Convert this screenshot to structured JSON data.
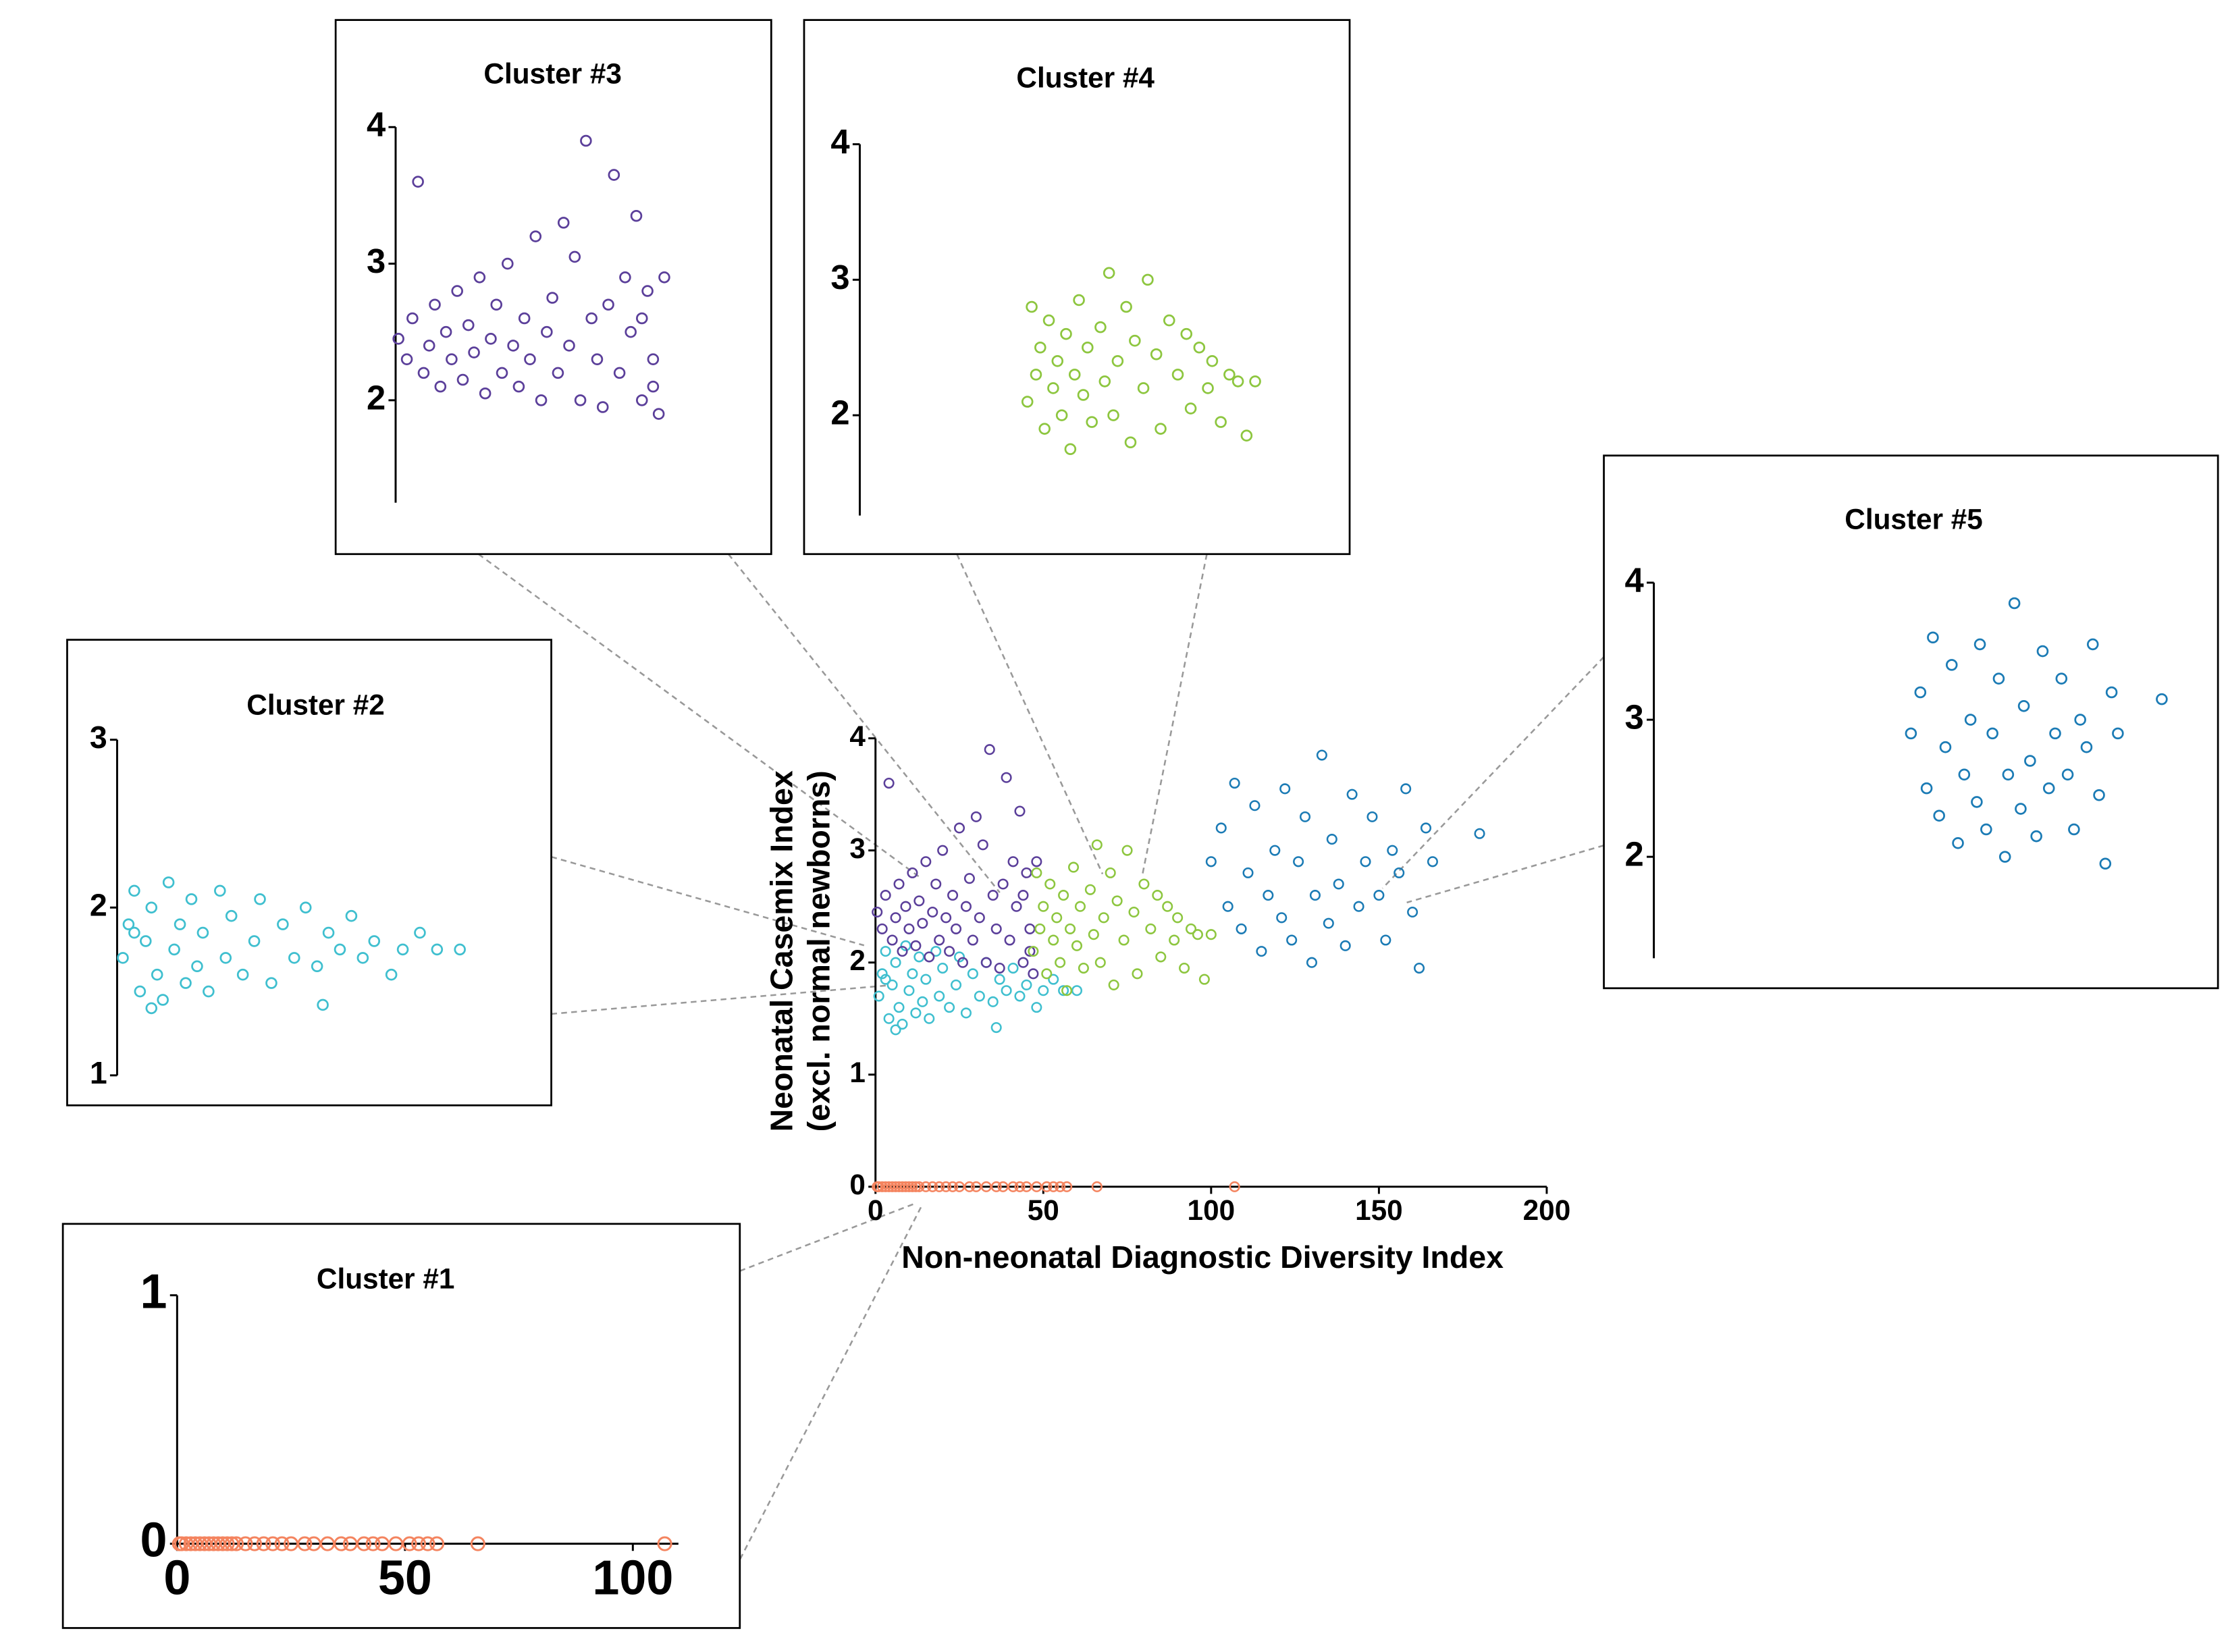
{
  "chart_data": [
    {
      "type": "scatter",
      "xlabel": "Non-neonatal Diagnostic Diversity Index",
      "ylabel": [
        "Neonatal Casemix  Index",
        "(excl. normal newborns)"
      ],
      "xlim": [
        0,
        200
      ],
      "ylim": [
        0,
        4
      ],
      "xticks": [
        0,
        50,
        100,
        150,
        200
      ],
      "yticks": [
        0,
        1,
        2,
        3,
        4
      ],
      "series": [
        {
          "color": "#f4845f",
          "x": [
            0.5,
            1,
            2,
            3,
            4,
            5,
            6,
            7,
            8,
            9,
            10,
            11,
            12,
            13,
            15,
            17,
            19,
            21,
            23,
            25,
            28,
            30,
            33,
            36,
            38,
            41,
            43,
            45,
            48,
            51,
            53,
            55,
            57,
            66,
            107
          ],
          "values": [
            0,
            0,
            0,
            0,
            0,
            0,
            0,
            0,
            0,
            0,
            0,
            0,
            0,
            0,
            0,
            0,
            0,
            0,
            0,
            0,
            0,
            0,
            0,
            0,
            0,
            0,
            0,
            0,
            0,
            0,
            0,
            0,
            0,
            0,
            0
          ]
        },
        {
          "color": "#3fbfcf",
          "x": [
            1,
            2,
            3,
            4,
            5,
            6,
            7,
            8,
            9,
            10,
            11,
            12,
            13,
            14,
            15,
            16,
            18,
            19,
            20,
            22,
            24,
            25,
            27,
            29,
            31,
            33,
            35,
            37,
            39,
            41,
            43,
            45,
            48,
            50,
            53,
            56,
            60,
            36,
            6,
            3
          ],
          "values": [
            1.7,
            1.9,
            2.1,
            1.5,
            1.8,
            2.0,
            1.6,
            1.45,
            2.15,
            1.75,
            1.9,
            1.55,
            2.05,
            1.65,
            1.85,
            1.5,
            2.1,
            1.7,
            1.95,
            1.6,
            1.8,
            2.05,
            1.55,
            1.9,
            1.7,
            2.0,
            1.65,
            1.85,
            1.75,
            1.95,
            1.7,
            1.8,
            1.6,
            1.75,
            1.85,
            1.75,
            1.75,
            1.42,
            1.4,
            1.85
          ]
        },
        {
          "color": "#5b3f9a",
          "x": [
            0.5,
            2,
            3,
            4,
            5,
            6,
            7,
            8,
            9,
            10,
            11,
            12,
            13,
            14,
            15,
            16,
            17,
            18,
            19,
            20,
            21,
            22,
            23,
            24,
            25,
            26,
            27,
            28,
            29,
            30,
            31,
            32,
            33,
            34,
            35,
            36,
            37,
            38,
            39,
            40,
            41,
            42,
            43,
            44,
            45,
            46,
            47,
            48,
            46,
            44
          ],
          "values": [
            2.45,
            2.3,
            2.6,
            3.6,
            2.2,
            2.4,
            2.7,
            2.1,
            2.5,
            2.3,
            2.8,
            2.15,
            2.55,
            2.35,
            2.9,
            2.05,
            2.45,
            2.7,
            2.2,
            3.0,
            2.4,
            2.1,
            2.6,
            2.3,
            3.2,
            2.0,
            2.5,
            2.75,
            2.2,
            3.3,
            2.4,
            3.05,
            2.0,
            3.9,
            2.6,
            2.3,
            1.95,
            2.7,
            3.65,
            2.2,
            2.9,
            2.5,
            3.35,
            2.0,
            2.8,
            2.3,
            1.9,
            2.9,
            2.1,
            2.6
          ]
        },
        {
          "color": "#8dc63f",
          "x": [
            47,
            48,
            49,
            50,
            51,
            52,
            53,
            54,
            55,
            56,
            57,
            58,
            59,
            60,
            61,
            62,
            64,
            65,
            66,
            67,
            68,
            70,
            71,
            72,
            74,
            75,
            77,
            78,
            80,
            82,
            84,
            85,
            87,
            89,
            90,
            92,
            94,
            96,
            98,
            100
          ],
          "values": [
            2.1,
            2.8,
            2.3,
            2.5,
            1.9,
            2.7,
            2.2,
            2.4,
            2.0,
            2.6,
            1.75,
            2.3,
            2.85,
            2.15,
            2.5,
            1.95,
            2.65,
            2.25,
            3.05,
            2.0,
            2.4,
            2.8,
            1.8,
            2.55,
            2.2,
            3.0,
            2.45,
            1.9,
            2.7,
            2.3,
            2.6,
            2.05,
            2.5,
            2.2,
            2.4,
            1.95,
            2.3,
            2.25,
            1.85,
            2.25
          ]
        },
        {
          "color": "#1b7bb5",
          "x": [
            100,
            103,
            105,
            107,
            109,
            111,
            113,
            115,
            117,
            119,
            121,
            122,
            124,
            126,
            128,
            130,
            131,
            133,
            135,
            136,
            138,
            140,
            142,
            144,
            146,
            148,
            150,
            152,
            154,
            156,
            158,
            160,
            162,
            164,
            166,
            180
          ],
          "values": [
            2.9,
            3.2,
            2.5,
            3.6,
            2.3,
            2.8,
            3.4,
            2.1,
            2.6,
            3.0,
            2.4,
            3.55,
            2.2,
            2.9,
            3.3,
            2.0,
            2.6,
            3.85,
            2.35,
            3.1,
            2.7,
            2.15,
            3.5,
            2.5,
            2.9,
            3.3,
            2.6,
            2.2,
            3.0,
            2.8,
            3.55,
            2.45,
            1.95,
            3.2,
            2.9,
            3.15
          ]
        }
      ]
    },
    {
      "type": "scatter",
      "title": "Cluster #1",
      "xlim": [
        0,
        110
      ],
      "ylim": [
        0,
        1
      ],
      "xticks": [
        0,
        50,
        100
      ],
      "yticks": [
        0,
        1
      ],
      "series": [
        {
          "color": "#f4845f",
          "x": [
            0.5,
            1,
            2,
            3,
            4,
            5,
            6,
            7,
            8,
            9,
            10,
            11,
            12,
            13,
            15,
            17,
            19,
            21,
            23,
            25,
            28,
            30,
            33,
            36,
            38,
            41,
            43,
            45,
            48,
            51,
            53,
            55,
            57,
            66,
            107
          ],
          "values": [
            0,
            0,
            0,
            0,
            0,
            0,
            0,
            0,
            0,
            0,
            0,
            0,
            0,
            0,
            0,
            0,
            0,
            0,
            0,
            0,
            0,
            0,
            0,
            0,
            0,
            0,
            0,
            0,
            0,
            0,
            0,
            0,
            0,
            0,
            0
          ]
        }
      ]
    },
    {
      "type": "scatter",
      "title": "Cluster #2",
      "xlim": [
        0,
        72
      ],
      "ylim": [
        1,
        3
      ],
      "yticks": [
        1,
        2,
        3
      ],
      "series": [
        {
          "color": "#3fbfcf",
          "x": [
            1,
            2,
            3,
            4,
            5,
            6,
            7,
            8,
            9,
            10,
            11,
            12,
            13,
            14,
            15,
            16,
            18,
            19,
            20,
            22,
            24,
            25,
            27,
            29,
            31,
            33,
            35,
            37,
            39,
            41,
            43,
            45,
            48,
            50,
            53,
            56,
            60,
            36,
            6,
            3
          ],
          "values": [
            1.7,
            1.9,
            2.1,
            1.5,
            1.8,
            2.0,
            1.6,
            1.45,
            2.15,
            1.75,
            1.9,
            1.55,
            2.05,
            1.65,
            1.85,
            1.5,
            2.1,
            1.7,
            1.95,
            1.6,
            1.8,
            2.05,
            1.55,
            1.9,
            1.7,
            2.0,
            1.65,
            1.85,
            1.75,
            1.95,
            1.7,
            1.8,
            1.6,
            1.75,
            1.85,
            1.75,
            1.75,
            1.42,
            1.4,
            1.85
          ]
        }
      ]
    },
    {
      "type": "scatter",
      "title": "Cluster #3",
      "xlim": [
        0,
        62
      ],
      "ylim": [
        1.25,
        4
      ],
      "yticks": [
        2,
        3,
        4
      ],
      "series": [
        {
          "color": "#5b3f9a",
          "x": [
            0.5,
            2,
            3,
            4,
            5,
            6,
            7,
            8,
            9,
            10,
            11,
            12,
            13,
            14,
            15,
            16,
            17,
            18,
            19,
            20,
            21,
            22,
            23,
            24,
            25,
            26,
            27,
            28,
            29,
            30,
            31,
            32,
            33,
            34,
            35,
            36,
            37,
            38,
            39,
            40,
            41,
            42,
            43,
            44,
            45,
            46,
            47,
            48,
            46,
            44
          ],
          "values": [
            2.45,
            2.3,
            2.6,
            3.6,
            2.2,
            2.4,
            2.7,
            2.1,
            2.5,
            2.3,
            2.8,
            2.15,
            2.55,
            2.35,
            2.9,
            2.05,
            2.45,
            2.7,
            2.2,
            3.0,
            2.4,
            2.1,
            2.6,
            2.3,
            3.2,
            2.0,
            2.5,
            2.75,
            2.2,
            3.3,
            2.4,
            3.05,
            2.0,
            3.9,
            2.6,
            2.3,
            1.95,
            2.7,
            3.65,
            2.2,
            2.9,
            2.5,
            3.35,
            2.0,
            2.8,
            2.3,
            1.9,
            2.9,
            2.1,
            2.6
          ]
        }
      ]
    },
    {
      "type": "scatter",
      "title": "Cluster #4",
      "xlim": [
        8,
        117
      ],
      "ylim": [
        1.26,
        4
      ],
      "yticks": [
        2,
        3,
        4
      ],
      "series": [
        {
          "color": "#8dc63f",
          "x": [
            47,
            48,
            49,
            50,
            51,
            52,
            53,
            54,
            55,
            56,
            57,
            58,
            59,
            60,
            61,
            62,
            64,
            65,
            66,
            67,
            68,
            70,
            71,
            72,
            74,
            75,
            77,
            78,
            80,
            82,
            84,
            85,
            87,
            89,
            90,
            92,
            94,
            96,
            98,
            100
          ],
          "values": [
            2.1,
            2.8,
            2.3,
            2.5,
            1.9,
            2.7,
            2.2,
            2.4,
            2.0,
            2.6,
            1.75,
            2.3,
            2.85,
            2.15,
            2.5,
            1.95,
            2.65,
            2.25,
            3.05,
            2.0,
            2.4,
            2.8,
            1.8,
            2.55,
            2.2,
            3.0,
            2.45,
            1.9,
            2.7,
            2.3,
            2.6,
            2.05,
            2.5,
            2.2,
            2.4,
            1.95,
            2.3,
            2.25,
            1.85,
            2.25
          ]
        }
      ]
    },
    {
      "type": "scatter",
      "title": "Cluster #5",
      "xlim": [
        18,
        192
      ],
      "ylim": [
        1.26,
        4
      ],
      "yticks": [
        2,
        3,
        4
      ],
      "series": [
        {
          "color": "#1b7bb5",
          "x": [
            100,
            103,
            105,
            107,
            109,
            111,
            113,
            115,
            117,
            119,
            121,
            122,
            124,
            126,
            128,
            130,
            131,
            133,
            135,
            136,
            138,
            140,
            142,
            144,
            146,
            148,
            150,
            152,
            154,
            156,
            158,
            160,
            162,
            164,
            166,
            180
          ],
          "values": [
            2.9,
            3.2,
            2.5,
            3.6,
            2.3,
            2.8,
            3.4,
            2.1,
            2.6,
            3.0,
            2.4,
            3.55,
            2.2,
            2.9,
            3.3,
            2.0,
            2.6,
            3.85,
            2.35,
            3.1,
            2.7,
            2.15,
            3.5,
            2.5,
            2.9,
            3.3,
            2.6,
            2.2,
            3.0,
            2.8,
            3.55,
            2.45,
            1.95,
            3.2,
            2.9,
            3.15
          ]
        }
      ]
    }
  ]
}
